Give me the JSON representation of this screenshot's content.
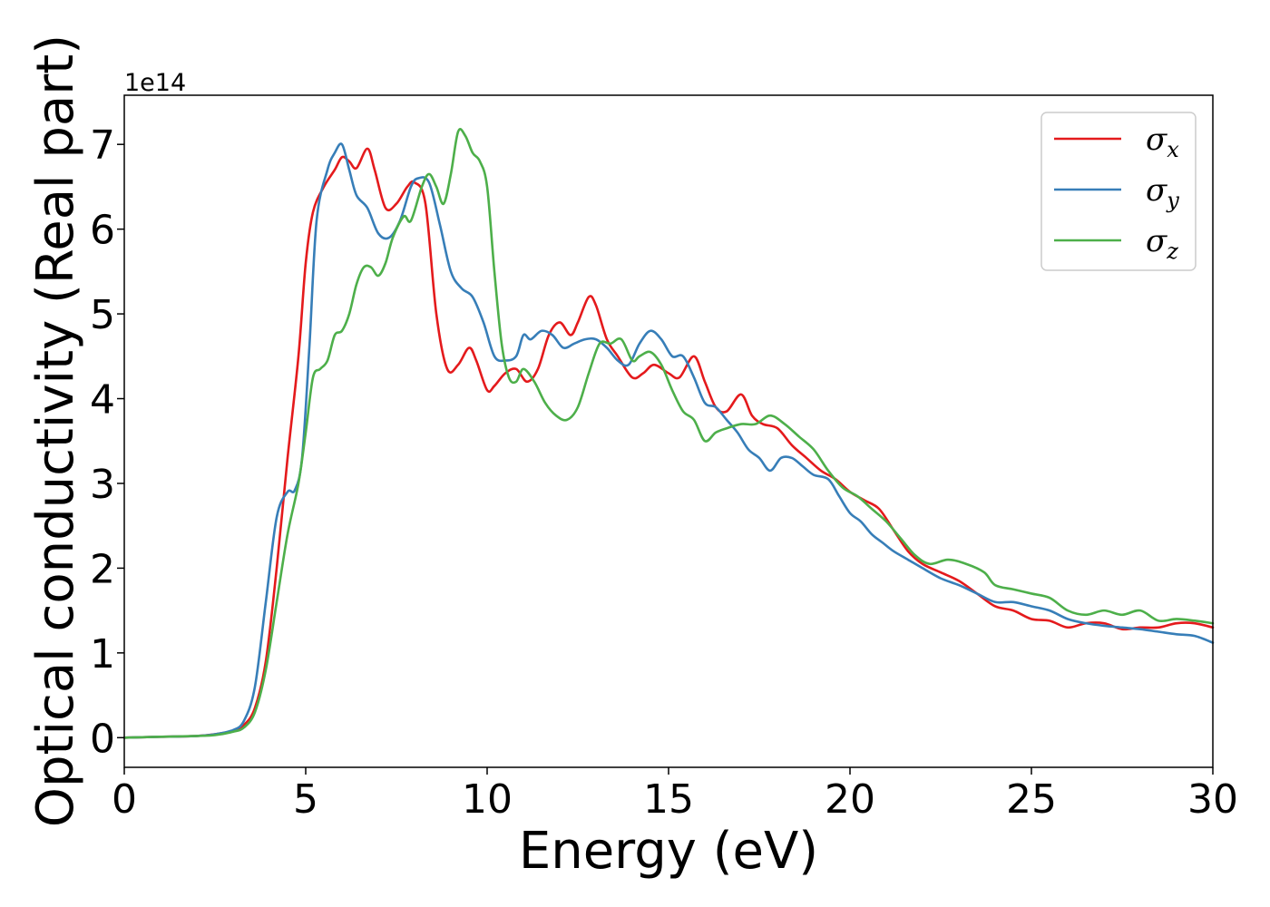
{
  "chart_data": {
    "type": "line",
    "title": "",
    "xlabel": "Energy (eV)",
    "ylabel": "Optical conductivity (Real part)",
    "y_offset_label": "1e14",
    "xlim": [
      0,
      30
    ],
    "ylim": [
      -0.35,
      7.58
    ],
    "xticks": [
      0,
      5,
      10,
      15,
      20,
      25,
      30
    ],
    "yticks": [
      0,
      1,
      2,
      3,
      4,
      5,
      6,
      7
    ],
    "grid": false,
    "legend_position": "top-right",
    "series": [
      {
        "name": "σx",
        "symbol": "σ",
        "subscript": "x",
        "color": "#e41a1c",
        "x": [
          0,
          1,
          2,
          2.5,
          3,
          3.3,
          3.6,
          3.9,
          4.2,
          4.5,
          4.8,
          5.0,
          5.2,
          5.5,
          5.8,
          6.0,
          6.2,
          6.4,
          6.7,
          6.9,
          7.2,
          7.5,
          7.8,
          8.0,
          8.3,
          8.6,
          8.9,
          9.2,
          9.5,
          9.7,
          10.0,
          10.2,
          10.5,
          10.8,
          11.1,
          11.4,
          11.7,
          12.0,
          12.3,
          12.5,
          12.8,
          13.0,
          13.3,
          13.6,
          14.0,
          14.3,
          14.6,
          15.0,
          15.3,
          15.7,
          16.0,
          16.3,
          16.6,
          17.0,
          17.3,
          17.6,
          18.0,
          18.4,
          18.8,
          19.2,
          19.6,
          20.0,
          20.4,
          20.8,
          21.2,
          21.6,
          22.0,
          22.5,
          23.0,
          23.5,
          24.0,
          24.5,
          25.0,
          25.5,
          26.0,
          26.5,
          27.0,
          27.5,
          28.0,
          28.5,
          29.0,
          29.5,
          30.0
        ],
        "values": [
          0,
          0.01,
          0.02,
          0.04,
          0.08,
          0.15,
          0.35,
          0.9,
          2.0,
          3.3,
          4.5,
          5.6,
          6.2,
          6.5,
          6.7,
          6.85,
          6.8,
          6.72,
          6.95,
          6.7,
          6.25,
          6.3,
          6.5,
          6.55,
          6.3,
          5.0,
          4.35,
          4.4,
          4.6,
          4.45,
          4.1,
          4.15,
          4.3,
          4.35,
          4.2,
          4.35,
          4.75,
          4.9,
          4.75,
          4.9,
          5.2,
          5.1,
          4.7,
          4.5,
          4.25,
          4.3,
          4.4,
          4.3,
          4.25,
          4.5,
          4.2,
          3.9,
          3.85,
          4.05,
          3.8,
          3.7,
          3.65,
          3.45,
          3.3,
          3.15,
          3.05,
          2.9,
          2.8,
          2.7,
          2.45,
          2.2,
          2.05,
          1.95,
          1.85,
          1.7,
          1.55,
          1.5,
          1.4,
          1.38,
          1.3,
          1.35,
          1.35,
          1.28,
          1.3,
          1.3,
          1.35,
          1.35,
          1.3
        ]
      },
      {
        "name": "σy",
        "symbol": "σ",
        "subscript": "y",
        "color": "#377eb8",
        "x": [
          0,
          1,
          2,
          2.5,
          3,
          3.3,
          3.6,
          3.9,
          4.2,
          4.5,
          4.7,
          4.9,
          5.1,
          5.3,
          5.6,
          5.8,
          6.0,
          6.2,
          6.4,
          6.7,
          7.0,
          7.3,
          7.6,
          7.9,
          8.1,
          8.4,
          8.7,
          9.0,
          9.3,
          9.6,
          9.9,
          10.2,
          10.5,
          10.8,
          11.0,
          11.2,
          11.5,
          11.8,
          12.1,
          12.4,
          12.7,
          13.0,
          13.3,
          13.6,
          13.9,
          14.2,
          14.5,
          14.8,
          15.1,
          15.4,
          15.7,
          16.0,
          16.3,
          16.6,
          16.9,
          17.2,
          17.5,
          17.8,
          18.1,
          18.4,
          18.7,
          19.0,
          19.4,
          19.7,
          20.0,
          20.3,
          20.6,
          20.9,
          21.2,
          21.6,
          22.0,
          22.5,
          23.0,
          23.5,
          24.0,
          24.5,
          25.0,
          25.5,
          26.0,
          26.5,
          27.0,
          27.5,
          28.0,
          28.5,
          29.0,
          29.5,
          30.0
        ],
        "values": [
          0,
          0.01,
          0.02,
          0.04,
          0.09,
          0.2,
          0.6,
          1.6,
          2.6,
          2.9,
          2.92,
          3.3,
          4.6,
          6.1,
          6.7,
          6.9,
          7.0,
          6.7,
          6.4,
          6.25,
          5.95,
          5.9,
          6.1,
          6.5,
          6.6,
          6.55,
          6.05,
          5.5,
          5.3,
          5.2,
          4.9,
          4.5,
          4.45,
          4.5,
          4.75,
          4.7,
          4.8,
          4.75,
          4.6,
          4.65,
          4.7,
          4.7,
          4.6,
          4.45,
          4.4,
          4.65,
          4.8,
          4.7,
          4.5,
          4.5,
          4.25,
          3.95,
          3.9,
          3.75,
          3.6,
          3.4,
          3.3,
          3.15,
          3.3,
          3.3,
          3.2,
          3.1,
          3.05,
          2.85,
          2.65,
          2.55,
          2.4,
          2.3,
          2.2,
          2.1,
          2.0,
          1.88,
          1.8,
          1.7,
          1.6,
          1.6,
          1.55,
          1.5,
          1.4,
          1.35,
          1.32,
          1.3,
          1.28,
          1.25,
          1.22,
          1.2,
          1.12
        ]
      },
      {
        "name": "σz",
        "symbol": "σ",
        "subscript": "z",
        "color": "#4daf4a",
        "x": [
          0,
          1,
          2,
          2.5,
          3,
          3.3,
          3.6,
          3.9,
          4.2,
          4.5,
          4.8,
          5.0,
          5.2,
          5.4,
          5.6,
          5.8,
          6.0,
          6.2,
          6.4,
          6.6,
          6.8,
          7.0,
          7.2,
          7.4,
          7.7,
          7.9,
          8.2,
          8.4,
          8.6,
          8.8,
          9.0,
          9.2,
          9.4,
          9.6,
          9.8,
          10.0,
          10.2,
          10.4,
          10.6,
          10.8,
          11.0,
          11.3,
          11.6,
          11.9,
          12.2,
          12.5,
          12.8,
          13.1,
          13.4,
          13.7,
          14.0,
          14.2,
          14.5,
          14.8,
          15.1,
          15.4,
          15.7,
          16.0,
          16.3,
          16.6,
          17.0,
          17.4,
          17.8,
          18.2,
          18.6,
          19.0,
          19.4,
          19.8,
          20.2,
          20.6,
          21.0,
          21.4,
          21.8,
          22.2,
          22.7,
          23.2,
          23.7,
          24.0,
          24.5,
          25.0,
          25.5,
          26.0,
          26.5,
          27.0,
          27.5,
          28.0,
          28.5,
          29.0,
          29.5,
          30.0
        ],
        "values": [
          0,
          0.01,
          0.02,
          0.03,
          0.07,
          0.12,
          0.3,
          0.8,
          1.6,
          2.4,
          3.0,
          3.6,
          4.25,
          4.35,
          4.45,
          4.75,
          4.8,
          5.0,
          5.35,
          5.55,
          5.55,
          5.45,
          5.6,
          5.9,
          6.15,
          6.1,
          6.5,
          6.65,
          6.5,
          6.3,
          6.65,
          7.15,
          7.1,
          6.9,
          6.8,
          6.5,
          5.5,
          4.65,
          4.25,
          4.2,
          4.35,
          4.2,
          3.95,
          3.8,
          3.75,
          3.9,
          4.3,
          4.65,
          4.65,
          4.7,
          4.45,
          4.5,
          4.55,
          4.4,
          4.1,
          3.85,
          3.75,
          3.5,
          3.6,
          3.65,
          3.7,
          3.7,
          3.8,
          3.7,
          3.55,
          3.4,
          3.15,
          2.95,
          2.85,
          2.7,
          2.55,
          2.35,
          2.15,
          2.05,
          2.1,
          2.05,
          1.95,
          1.8,
          1.75,
          1.7,
          1.65,
          1.5,
          1.45,
          1.5,
          1.45,
          1.5,
          1.38,
          1.4,
          1.38,
          1.35
        ]
      }
    ]
  }
}
